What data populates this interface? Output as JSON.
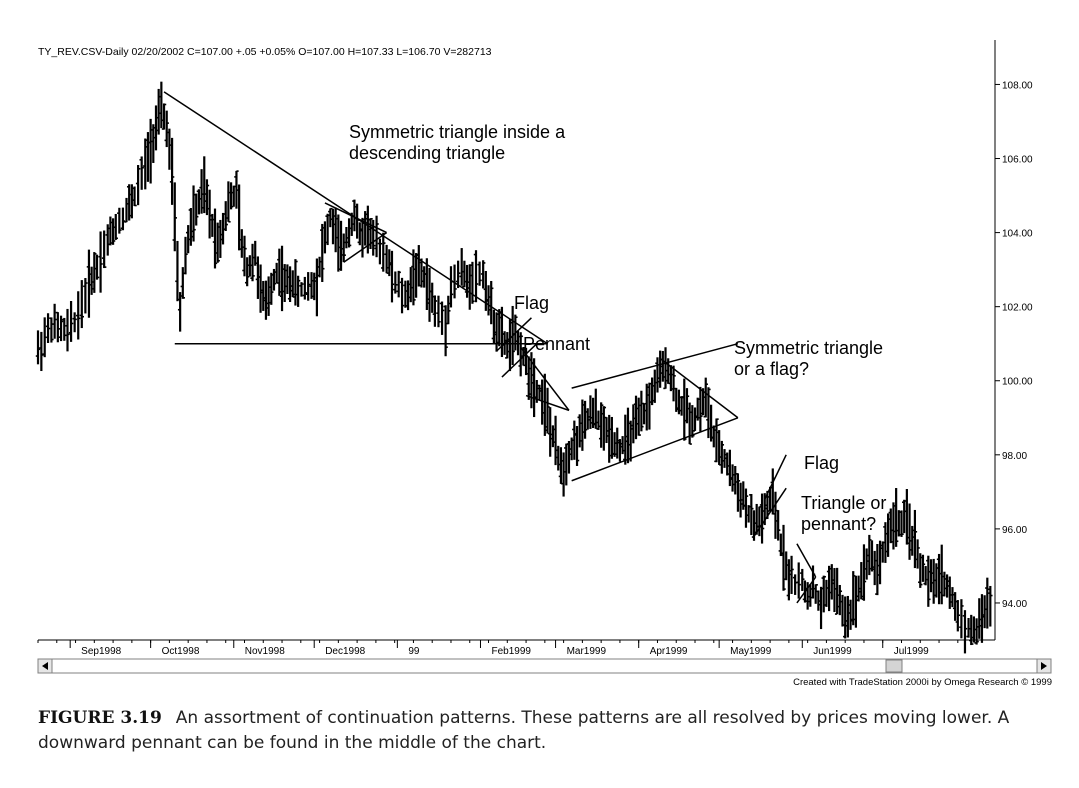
{
  "header": {
    "text": "TY_REV.CSV-Daily  02/20/2002  C=107.00  +.05  +0.05%  O=107.00  H=107.33  L=106.70  V=282713"
  },
  "credit": "Created with TradeStation 2000i by Omega Research © 1999",
  "caption": {
    "label": "FIGURE 3.19",
    "text": "An assortment of continuation patterns. These patterns are all resolved by prices moving lower. A downward pennant can be found in the middle of the chart."
  },
  "annotations": [
    {
      "id": "sym-desc",
      "lines": [
        "Symmetric triangle inside a",
        "descending triangle"
      ]
    },
    {
      "id": "flag1",
      "lines": [
        "Flag"
      ]
    },
    {
      "id": "pennant1",
      "lines": [
        "Pennant"
      ]
    },
    {
      "id": "sym-flag",
      "lines": [
        "Symmetric triangle",
        "or a flag?"
      ]
    },
    {
      "id": "flag2",
      "lines": [
        "Flag"
      ]
    },
    {
      "id": "tri-pennant",
      "lines": [
        "Triangle or",
        "pennant?"
      ]
    }
  ],
  "chart_data": {
    "type": "ohlc",
    "title": "",
    "xlabel": "",
    "ylabel": "",
    "ylim": [
      93,
      109.2
    ],
    "y_ticks": [
      "108.00",
      "106.00",
      "104.00",
      "102.00",
      "100.00",
      "98.00",
      "96.00",
      "94.00"
    ],
    "y_tick_values": [
      108,
      106,
      104,
      102,
      100,
      98,
      96,
      94
    ],
    "x_ticks": [
      "Sep1998",
      "Oct1998",
      "Nov1998",
      "Dec1998",
      "99",
      "Feb1999",
      "Mar1999",
      "Apr1999",
      "May1999",
      "Jun1999",
      "Jul1999"
    ],
    "x_tick_dates": [
      "1998-09-01",
      "1998-10-01",
      "1998-11-01",
      "1998-12-01",
      "1999-01-01",
      "1999-02-01",
      "1999-03-01",
      "1999-04-01",
      "1999-05-01",
      "1999-06-01",
      "1999-07-01"
    ],
    "date_range": [
      "1998-08-20",
      "1999-08-10"
    ],
    "series": [
      {
        "type": "close",
        "points": [
          [
            "1998-08-20",
            100.8
          ],
          [
            "1998-08-25",
            101.5
          ],
          [
            "1998-08-31",
            101.3
          ],
          [
            "1998-09-04",
            101.8
          ],
          [
            "1998-09-08",
            102.6
          ],
          [
            "1998-09-11",
            103.1
          ],
          [
            "1998-09-15",
            103.8
          ],
          [
            "1998-09-18",
            104.2
          ],
          [
            "1998-09-22",
            104.6
          ],
          [
            "1998-09-25",
            105.0
          ],
          [
            "1998-09-29",
            105.8
          ],
          [
            "1998-10-02",
            106.6
          ],
          [
            "1998-10-05",
            107.3
          ],
          [
            "1998-10-07",
            106.9
          ],
          [
            "1998-10-09",
            105.4
          ],
          [
            "1998-10-12",
            101.8
          ],
          [
            "1998-10-14",
            103.4
          ],
          [
            "1998-10-16",
            104.2
          ],
          [
            "1998-10-19",
            104.8
          ],
          [
            "1998-10-21",
            105.2
          ],
          [
            "1998-10-23",
            104.5
          ],
          [
            "1998-10-26",
            103.7
          ],
          [
            "1998-10-28",
            104.2
          ],
          [
            "1998-10-30",
            104.8
          ],
          [
            "1998-11-02",
            105.1
          ],
          [
            "1998-11-04",
            103.6
          ],
          [
            "1998-11-06",
            103.0
          ],
          [
            "1998-11-09",
            103.4
          ],
          [
            "1998-11-11",
            102.4
          ],
          [
            "1998-11-13",
            102.0
          ],
          [
            "1998-11-16",
            102.8
          ],
          [
            "1998-11-18",
            103.0
          ],
          [
            "1998-11-20",
            102.6
          ],
          [
            "1998-11-23",
            102.7
          ],
          [
            "1998-11-25",
            102.4
          ],
          [
            "1998-11-30",
            102.6
          ],
          [
            "1998-12-02",
            102.7
          ],
          [
            "1998-12-04",
            103.5
          ],
          [
            "1998-12-07",
            104.4
          ],
          [
            "1998-12-09",
            104.0
          ],
          [
            "1998-12-11",
            103.4
          ],
          [
            "1998-12-14",
            104.1
          ],
          [
            "1998-12-16",
            104.5
          ],
          [
            "1998-12-18",
            103.9
          ],
          [
            "1998-12-21",
            104.2
          ],
          [
            "1998-12-23",
            103.8
          ],
          [
            "1998-12-28",
            103.4
          ],
          [
            "1998-12-30",
            102.8
          ],
          [
            "1999-01-04",
            102.2
          ],
          [
            "1999-01-06",
            102.6
          ],
          [
            "1999-01-08",
            103.0
          ],
          [
            "1999-01-11",
            102.8
          ],
          [
            "1999-01-13",
            102.4
          ],
          [
            "1999-01-15",
            101.9
          ],
          [
            "1999-01-19",
            101.6
          ],
          [
            "1999-01-21",
            102.5
          ],
          [
            "1999-01-25",
            103.0
          ],
          [
            "1999-01-27",
            102.6
          ],
          [
            "1999-01-29",
            102.8
          ],
          [
            "1999-02-02",
            102.9
          ],
          [
            "1999-02-04",
            102.2
          ],
          [
            "1999-02-06",
            101.6
          ],
          [
            "1999-02-09",
            101.2
          ],
          [
            "1999-02-11",
            100.9
          ],
          [
            "1999-02-13",
            101.2
          ],
          [
            "1999-02-16",
            100.9
          ],
          [
            "1999-02-18",
            100.4
          ],
          [
            "1999-02-20",
            100.1
          ],
          [
            "1999-02-23",
            99.7
          ],
          [
            "1999-02-25",
            99.4
          ],
          [
            "1999-02-27",
            98.7
          ],
          [
            "1999-03-02",
            97.9
          ],
          [
            "1999-03-04",
            97.6
          ],
          [
            "1999-03-06",
            98.1
          ],
          [
            "1999-03-09",
            98.4
          ],
          [
            "1999-03-11",
            98.7
          ],
          [
            "1999-03-13",
            99.0
          ],
          [
            "1999-03-16",
            99.1
          ],
          [
            "1999-03-18",
            98.8
          ],
          [
            "1999-03-20",
            98.6
          ],
          [
            "1999-03-23",
            98.4
          ],
          [
            "1999-03-25",
            98.2
          ],
          [
            "1999-03-27",
            98.3
          ],
          [
            "1999-03-30",
            98.7
          ],
          [
            "1999-04-02",
            99.0
          ],
          [
            "1999-04-05",
            99.4
          ],
          [
            "1999-04-07",
            99.9
          ],
          [
            "1999-04-09",
            100.2
          ],
          [
            "1999-04-12",
            100.4
          ],
          [
            "1999-04-14",
            99.8
          ],
          [
            "1999-04-16",
            99.4
          ],
          [
            "1999-04-19",
            99.2
          ],
          [
            "1999-04-21",
            98.9
          ],
          [
            "1999-04-23",
            99.2
          ],
          [
            "1999-04-26",
            99.5
          ],
          [
            "1999-04-28",
            98.8
          ],
          [
            "1999-04-30",
            98.2
          ],
          [
            "1999-05-03",
            97.9
          ],
          [
            "1999-05-05",
            97.6
          ],
          [
            "1999-05-07",
            97.2
          ],
          [
            "1999-05-10",
            96.8
          ],
          [
            "1999-05-12",
            96.4
          ],
          [
            "1999-05-14",
            96.1
          ],
          [
            "1999-05-17",
            96.3
          ],
          [
            "1999-05-19",
            96.6
          ],
          [
            "1999-05-21",
            96.8
          ],
          [
            "1999-05-24",
            95.6
          ],
          [
            "1999-05-26",
            95.0
          ],
          [
            "1999-05-28",
            94.6
          ],
          [
            "1999-06-01",
            94.5
          ],
          [
            "1999-06-03",
            94.2
          ],
          [
            "1999-06-05",
            94.4
          ],
          [
            "1999-06-08",
            93.9
          ],
          [
            "1999-06-10",
            94.3
          ],
          [
            "1999-06-12",
            94.6
          ],
          [
            "1999-06-15",
            94.0
          ],
          [
            "1999-06-17",
            93.6
          ],
          [
            "1999-06-19",
            93.8
          ],
          [
            "1999-06-22",
            94.4
          ],
          [
            "1999-06-24",
            94.9
          ],
          [
            "1999-06-26",
            95.3
          ],
          [
            "1999-06-29",
            94.9
          ],
          [
            "1999-07-01",
            95.4
          ],
          [
            "1999-07-03",
            95.9
          ],
          [
            "1999-07-06",
            96.3
          ],
          [
            "1999-07-08",
            96.1
          ],
          [
            "1999-07-10",
            96.2
          ],
          [
            "1999-07-13",
            95.6
          ],
          [
            "1999-07-15",
            95.0
          ],
          [
            "1999-07-17",
            94.7
          ],
          [
            "1999-07-20",
            94.5
          ],
          [
            "1999-07-22",
            94.8
          ],
          [
            "1999-07-24",
            94.6
          ],
          [
            "1999-07-27",
            94.1
          ],
          [
            "1999-07-29",
            93.7
          ],
          [
            "1999-08-02",
            93.3
          ],
          [
            "1999-08-04",
            93.2
          ],
          [
            "1999-08-06",
            93.4
          ],
          [
            "1999-08-09",
            94.0
          ]
        ]
      }
    ],
    "trendlines": [
      {
        "name": "descending triangle upper",
        "from": [
          "1998-10-06",
          107.8
        ],
        "to": [
          "1999-02-26",
          101.0
        ]
      },
      {
        "name": "descending triangle base",
        "from": [
          "1998-10-10",
          101.0
        ],
        "to": [
          "1999-02-26",
          101.0
        ]
      },
      {
        "name": "symmetric triangle upper",
        "from": [
          "1998-12-05",
          104.8
        ],
        "to": [
          "1998-12-28",
          104.0
        ]
      },
      {
        "name": "symmetric triangle lower",
        "from": [
          "1998-12-12",
          103.2
        ],
        "to": [
          "1998-12-28",
          104.0
        ]
      },
      {
        "name": "flag 1 upper",
        "from": [
          "1999-02-07",
          100.8
        ],
        "to": [
          "1999-02-20",
          101.7
        ]
      },
      {
        "name": "flag 1 lower",
        "from": [
          "1999-02-09",
          100.1
        ],
        "to": [
          "1999-02-22",
          101.0
        ]
      },
      {
        "name": "pennant upper",
        "from": [
          "1999-02-16",
          100.9
        ],
        "to": [
          "1999-03-06",
          99.2
        ]
      },
      {
        "name": "pennant lower",
        "from": [
          "1999-02-18",
          99.6
        ],
        "to": [
          "1999-03-06",
          99.2
        ]
      },
      {
        "name": "channel upper",
        "from": [
          "1999-03-07",
          99.8
        ],
        "to": [
          "1999-05-08",
          101.0
        ]
      },
      {
        "name": "channel lower",
        "from": [
          "1999-03-07",
          97.3
        ],
        "to": [
          "1999-05-08",
          99.0
        ]
      },
      {
        "name": "channel apex line",
        "from": [
          "1999-04-09",
          100.6
        ],
        "to": [
          "1999-05-08",
          99.0
        ]
      },
      {
        "name": "flag 2 upper",
        "from": [
          "1999-05-18",
          96.8
        ],
        "to": [
          "1999-05-26",
          98.0
        ]
      },
      {
        "name": "flag 2 lower",
        "from": [
          "1999-05-14",
          95.8
        ],
        "to": [
          "1999-05-26",
          97.1
        ]
      },
      {
        "name": "pennant 2 upper",
        "from": [
          "1999-05-30",
          95.6
        ],
        "to": [
          "1999-06-06",
          94.7
        ]
      },
      {
        "name": "pennant 2 lower",
        "from": [
          "1999-05-30",
          94.0
        ],
        "to": [
          "1999-06-06",
          94.7
        ]
      }
    ],
    "grid": false,
    "legend": "none"
  }
}
